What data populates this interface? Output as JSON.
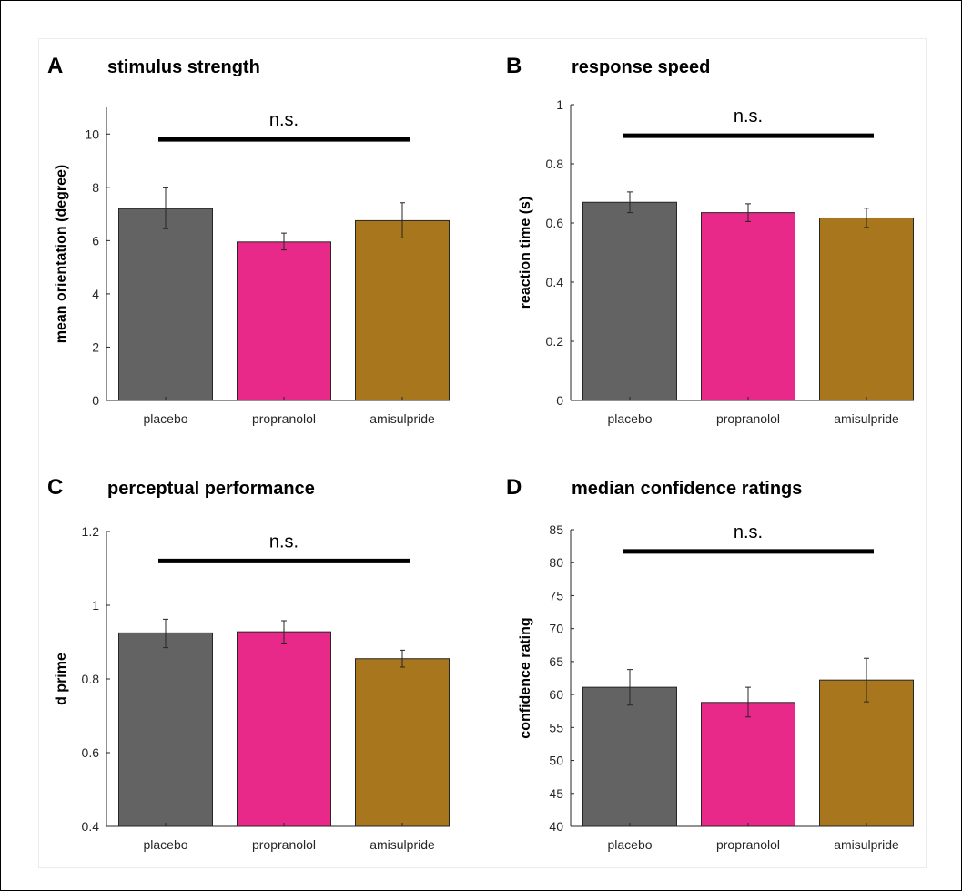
{
  "colors": {
    "placebo": "#636363",
    "propranolol": "#e8298a",
    "amisulpride": "#a8771d"
  },
  "chart_data": [
    {
      "type": "bar",
      "panel": "A",
      "title": "stimulus strength",
      "ylabel": "mean orientation (degree)",
      "categories": [
        "placebo",
        "propranolol",
        "amisulpride"
      ],
      "values": [
        7.2,
        5.95,
        6.75
      ],
      "errors": [
        [
          6.45,
          7.98
        ],
        [
          5.65,
          6.28
        ],
        [
          6.1,
          7.42
        ]
      ],
      "ylim": [
        0,
        11
      ],
      "yticks": [
        0,
        2,
        4,
        6,
        8,
        10
      ],
      "ytick_labels": [
        "0",
        "2",
        "4",
        "6",
        "8",
        "10"
      ],
      "significance": {
        "label": "n.s.",
        "y": 9.8,
        "from": 0,
        "to": 2
      }
    },
    {
      "type": "bar",
      "panel": "B",
      "title": "response speed",
      "ylabel": "reaction time (s)",
      "categories": [
        "placebo",
        "propranolol",
        "amisulpride"
      ],
      "values": [
        0.67,
        0.635,
        0.617
      ],
      "errors": [
        [
          0.635,
          0.705
        ],
        [
          0.605,
          0.665
        ],
        [
          0.585,
          0.65
        ]
      ],
      "ylim": [
        0,
        1
      ],
      "yticks": [
        0,
        0.2,
        0.4,
        0.6,
        0.8,
        1
      ],
      "ytick_labels": [
        "0",
        "0.2",
        "0.4",
        "0.6",
        "0.8",
        "1"
      ],
      "significance": {
        "label": "n.s.",
        "y": 0.895,
        "from": 0,
        "to": 2
      }
    },
    {
      "type": "bar",
      "panel": "C",
      "title": "perceptual performance",
      "ylabel": "d prime",
      "categories": [
        "placebo",
        "propranolol",
        "amisulpride"
      ],
      "values": [
        0.925,
        0.928,
        0.855
      ],
      "errors": [
        [
          0.885,
          0.962
        ],
        [
          0.895,
          0.958
        ],
        [
          0.832,
          0.878
        ]
      ],
      "ylim": [
        0.4,
        1.2
      ],
      "yticks": [
        0.4,
        0.6,
        0.8,
        1.0,
        1.2
      ],
      "ytick_labels": [
        "0.4",
        "0.6",
        "0.8",
        "1",
        "1.2"
      ],
      "significance": {
        "label": "n.s.",
        "y": 1.12,
        "from": 0,
        "to": 2
      }
    },
    {
      "type": "bar",
      "panel": "D",
      "title": "median confidence ratings",
      "ylabel": "confidence rating",
      "categories": [
        "placebo",
        "propranolol",
        "amisulpride"
      ],
      "values": [
        61.1,
        58.8,
        62.2
      ],
      "errors": [
        [
          58.4,
          63.8
        ],
        [
          56.6,
          61.1
        ],
        [
          58.9,
          65.5
        ]
      ],
      "ylim": [
        40,
        85
      ],
      "yticks": [
        40,
        45,
        50,
        55,
        60,
        65,
        70,
        75,
        80,
        85
      ],
      "ytick_labels": [
        "40",
        "45",
        "50",
        "55",
        "60",
        "65",
        "70",
        "75",
        "80",
        "85"
      ],
      "significance": {
        "label": "n.s.",
        "y": 81.7,
        "from": 0,
        "to": 2
      }
    }
  ]
}
